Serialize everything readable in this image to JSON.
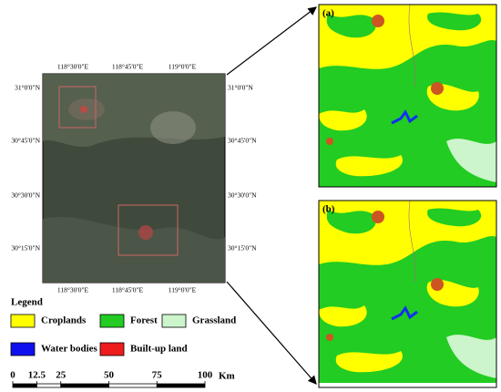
{
  "map": {
    "top_labels": [
      "118°30'0\"E",
      "118°45'0\"E",
      "119°0'0\"E"
    ],
    "bottom_labels": [
      "118°30'0\"E",
      "118°45'0\"E",
      "119°0'0\"E"
    ],
    "left_labels": [
      "31°0'0\"N",
      "30°45'0\"N",
      "30°30'0\"N",
      "30°15'0\"N"
    ],
    "right_labels": [
      "31°0'0\"N",
      "30°45'0\"N",
      "30°30'0\"N",
      "30°15'0\"N"
    ]
  },
  "panels": [
    {
      "label": "(a)"
    },
    {
      "label": "(b)"
    }
  ],
  "legend": {
    "title": "Legend",
    "items": [
      {
        "label": "Croplands",
        "color": "#ffff00"
      },
      {
        "label": "Forest",
        "color": "#22cc22"
      },
      {
        "label": "Grassland",
        "color": "#ccf5cc"
      },
      {
        "label": "Water bodies",
        "color": "#1010ee"
      },
      {
        "label": "Built-up land",
        "color": "#ee1c1c"
      }
    ]
  },
  "scale_bar": {
    "ticks": [
      0,
      12.5,
      25,
      50,
      75,
      100
    ],
    "unit": "Km"
  }
}
